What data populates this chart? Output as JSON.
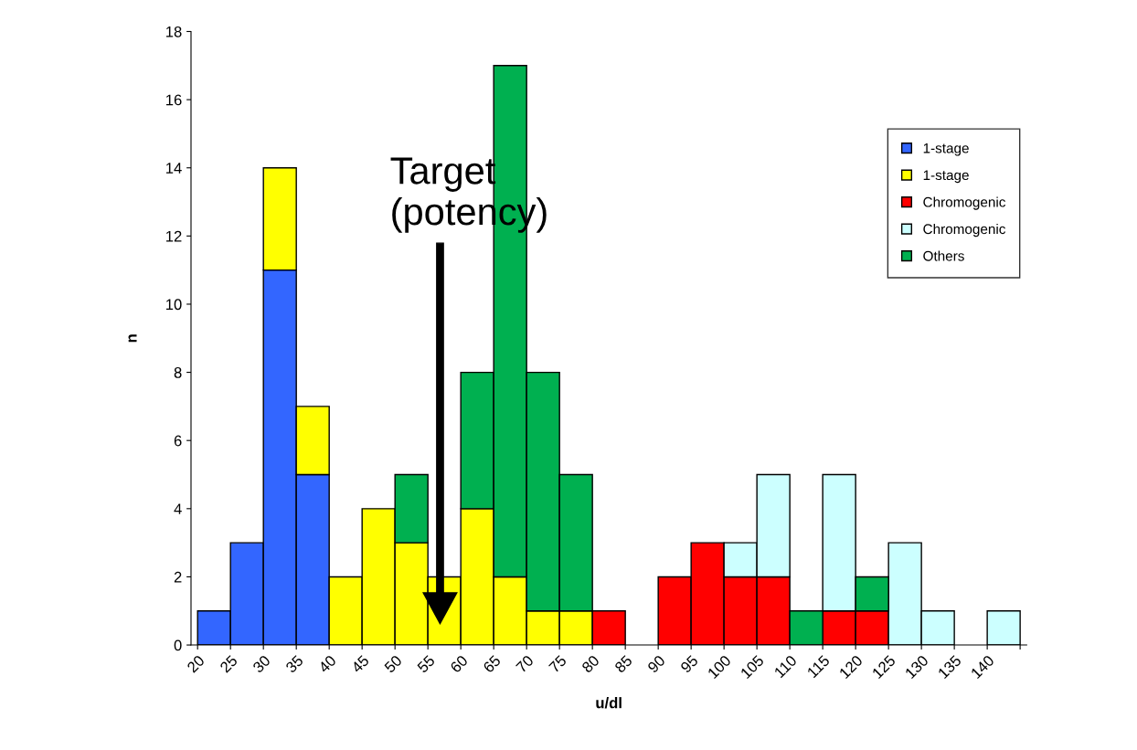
{
  "chart_data": {
    "type": "bar",
    "stacked": true,
    "xlabel": "u/dl",
    "ylabel": "n",
    "x": [
      22.5,
      27.5,
      32.5,
      37.5,
      42.5,
      47.5,
      52.5,
      57.5,
      62.5,
      67.5,
      72.5,
      77.5,
      82.5,
      87.5,
      92.5,
      97.5,
      102.5,
      107.5,
      112.5,
      117.5,
      122.5,
      127.5,
      132.5,
      137.5,
      142.5
    ],
    "series": [
      {
        "name": "1-stage",
        "color": "#3366ff",
        "values": [
          1,
          3,
          11,
          5,
          0,
          0,
          0,
          0,
          0,
          0,
          0,
          0,
          0,
          0,
          0,
          0,
          0,
          0,
          0,
          0,
          0,
          0,
          0,
          0,
          0
        ]
      },
      {
        "name": "1-stage",
        "color": "#ffff00",
        "values": [
          0,
          0,
          3,
          2,
          2,
          4,
          3,
          2,
          4,
          2,
          1,
          1,
          0,
          0,
          0,
          0,
          0,
          0,
          0,
          0,
          0,
          0,
          0,
          0,
          0
        ]
      },
      {
        "name": "Chromogenic",
        "color": "#ff0000",
        "values": [
          0,
          0,
          0,
          0,
          0,
          0,
          0,
          0,
          0,
          0,
          0,
          0,
          1,
          0,
          2,
          3,
          2,
          2,
          0,
          1,
          1,
          0,
          0,
          0,
          0
        ]
      },
      {
        "name": "Chromogenic",
        "color": "#ccffff",
        "values": [
          0,
          0,
          0,
          0,
          0,
          0,
          0,
          0,
          0,
          0,
          0,
          0,
          0,
          0,
          0,
          0,
          1,
          3,
          0,
          4,
          0,
          3,
          1,
          0,
          1
        ]
      },
      {
        "name": "Others",
        "color": "#00b050",
        "values": [
          0,
          0,
          0,
          0,
          0,
          0,
          2,
          0,
          4,
          15,
          7,
          4,
          0,
          0,
          0,
          0,
          0,
          0,
          1,
          0,
          1,
          0,
          0,
          0,
          0
        ]
      }
    ],
    "xlim": [
      19,
      146
    ],
    "xticks": [
      20,
      25,
      30,
      35,
      40,
      45,
      50,
      55,
      60,
      65,
      70,
      75,
      80,
      85,
      90,
      95,
      100,
      105,
      110,
      115,
      120,
      125,
      130,
      135,
      140,
      {
        "value": 145,
        "label": null
      }
    ],
    "ylim": [
      0,
      18
    ],
    "yticks": [
      0,
      2,
      4,
      6,
      8,
      10,
      12,
      14,
      16,
      18
    ],
    "annotations": [
      "Target\n(potency)"
    ],
    "legend": "right",
    "grid": false
  }
}
